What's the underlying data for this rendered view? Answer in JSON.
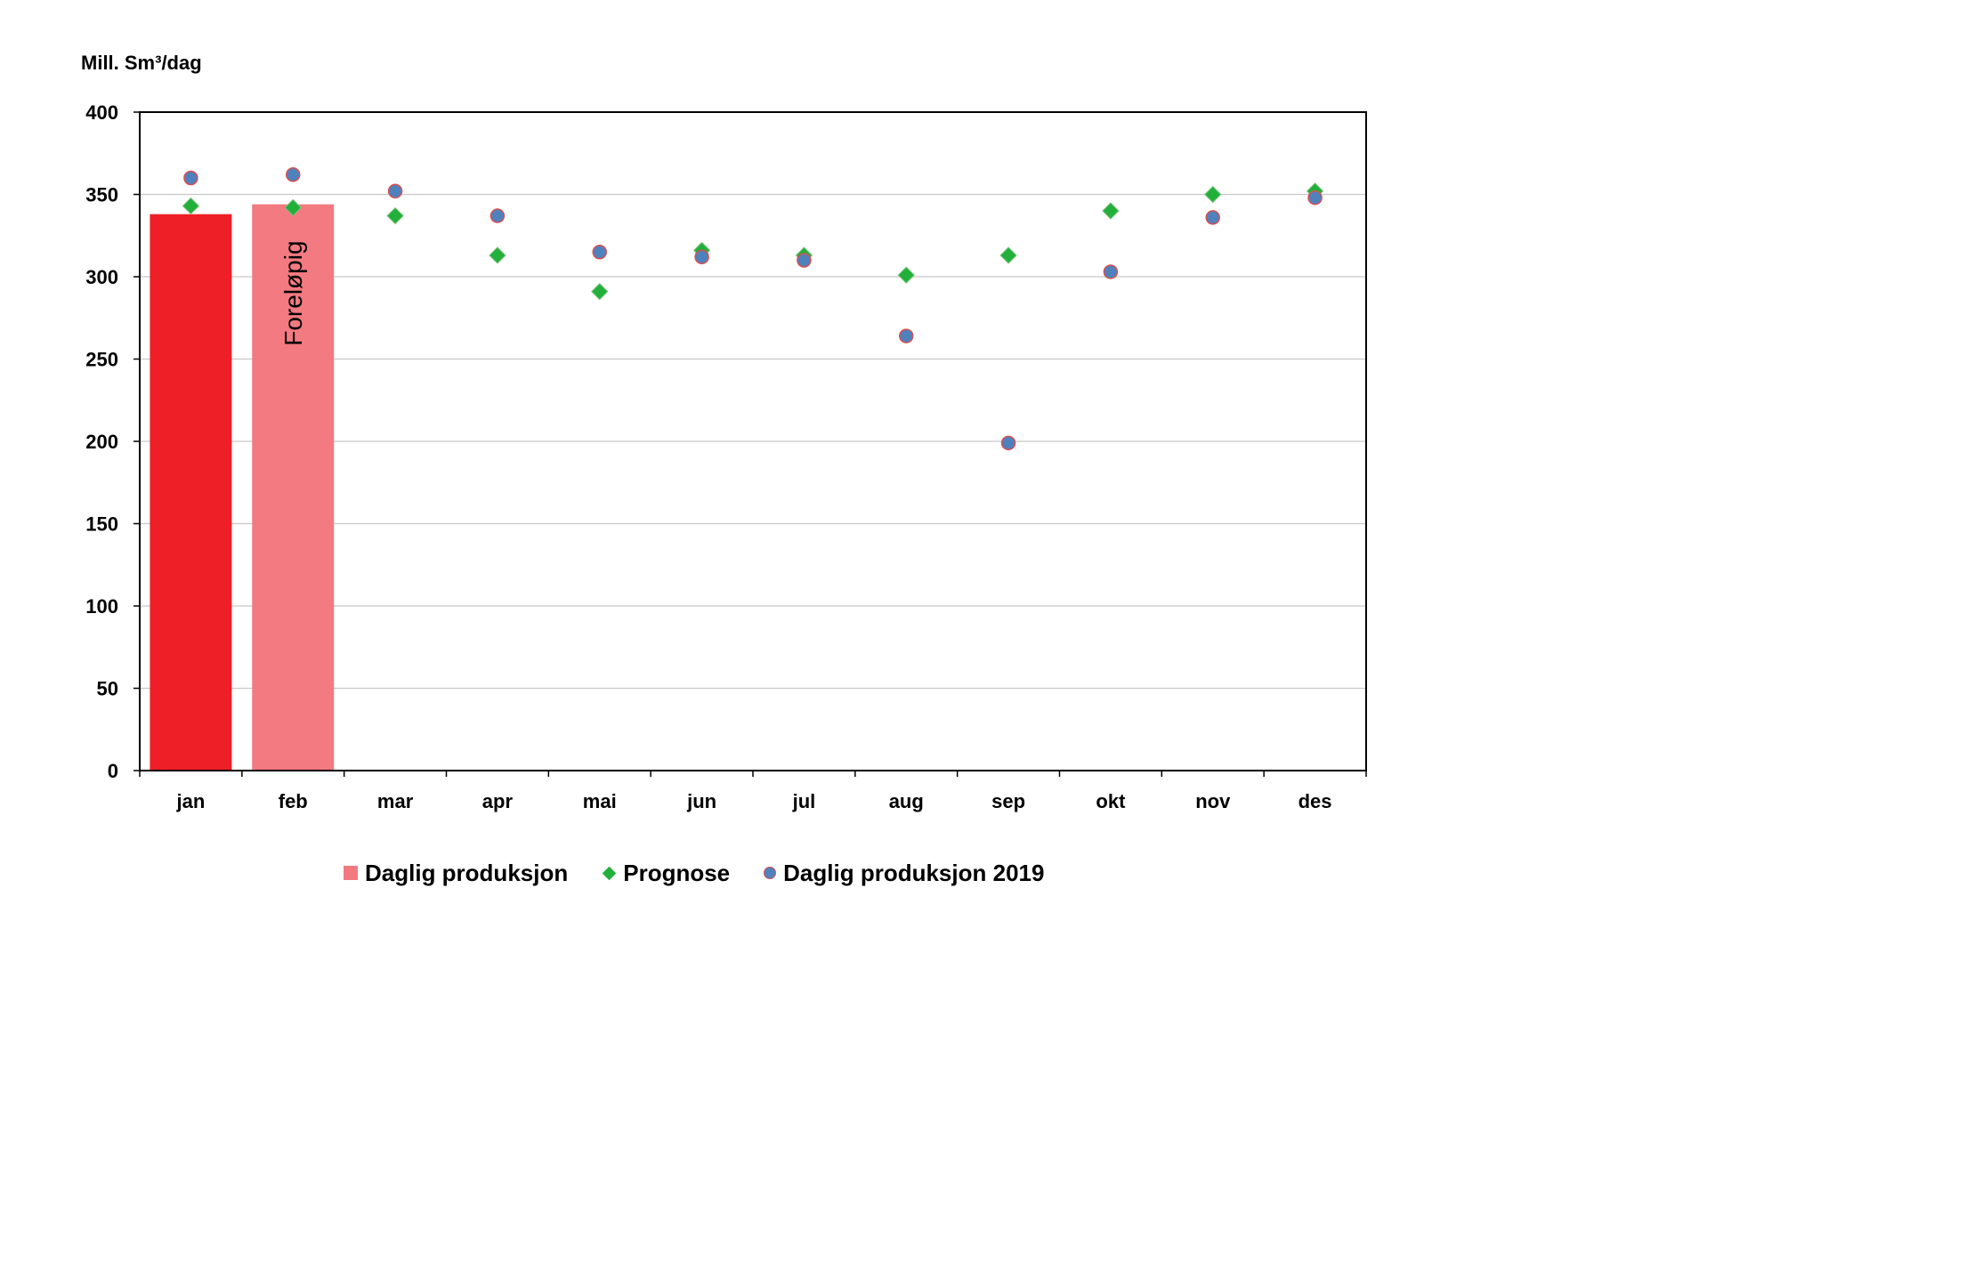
{
  "chart_data": {
    "type": "bar",
    "ylabel": "Mill. Sm³/dag",
    "ylim": [
      0,
      400
    ],
    "yticks": [
      0,
      50,
      100,
      150,
      200,
      250,
      300,
      350,
      400
    ],
    "grid": true,
    "legend_position": "bottom",
    "categories": [
      "jan",
      "feb",
      "mar",
      "apr",
      "mai",
      "jun",
      "jul",
      "aug",
      "sep",
      "okt",
      "nov",
      "des"
    ],
    "bars": [
      {
        "category": "jan",
        "value": 338,
        "color": "#ee1f26"
      },
      {
        "category": "feb",
        "value": 344,
        "color": "#f27a80",
        "annotation": "Foreløpig"
      }
    ],
    "series": [
      {
        "name": "Daglig produksjon",
        "type": "bar",
        "color": "#f27a80",
        "values": [
          338,
          344,
          null,
          null,
          null,
          null,
          null,
          null,
          null,
          null,
          null,
          null
        ]
      },
      {
        "name": "Prognose",
        "type": "scatter",
        "marker": "diamond",
        "color": "#22b03a",
        "values": [
          343,
          342,
          337,
          313,
          291,
          316,
          313,
          301,
          313,
          340,
          350,
          352
        ]
      },
      {
        "name": "Daglig produksjon 2019",
        "type": "scatter",
        "marker": "circle",
        "color": "#4f81bd",
        "edge_color": "#d85050",
        "values": [
          360,
          362,
          352,
          337,
          315,
          312,
          310,
          264,
          199,
          303,
          336,
          348
        ]
      }
    ]
  }
}
